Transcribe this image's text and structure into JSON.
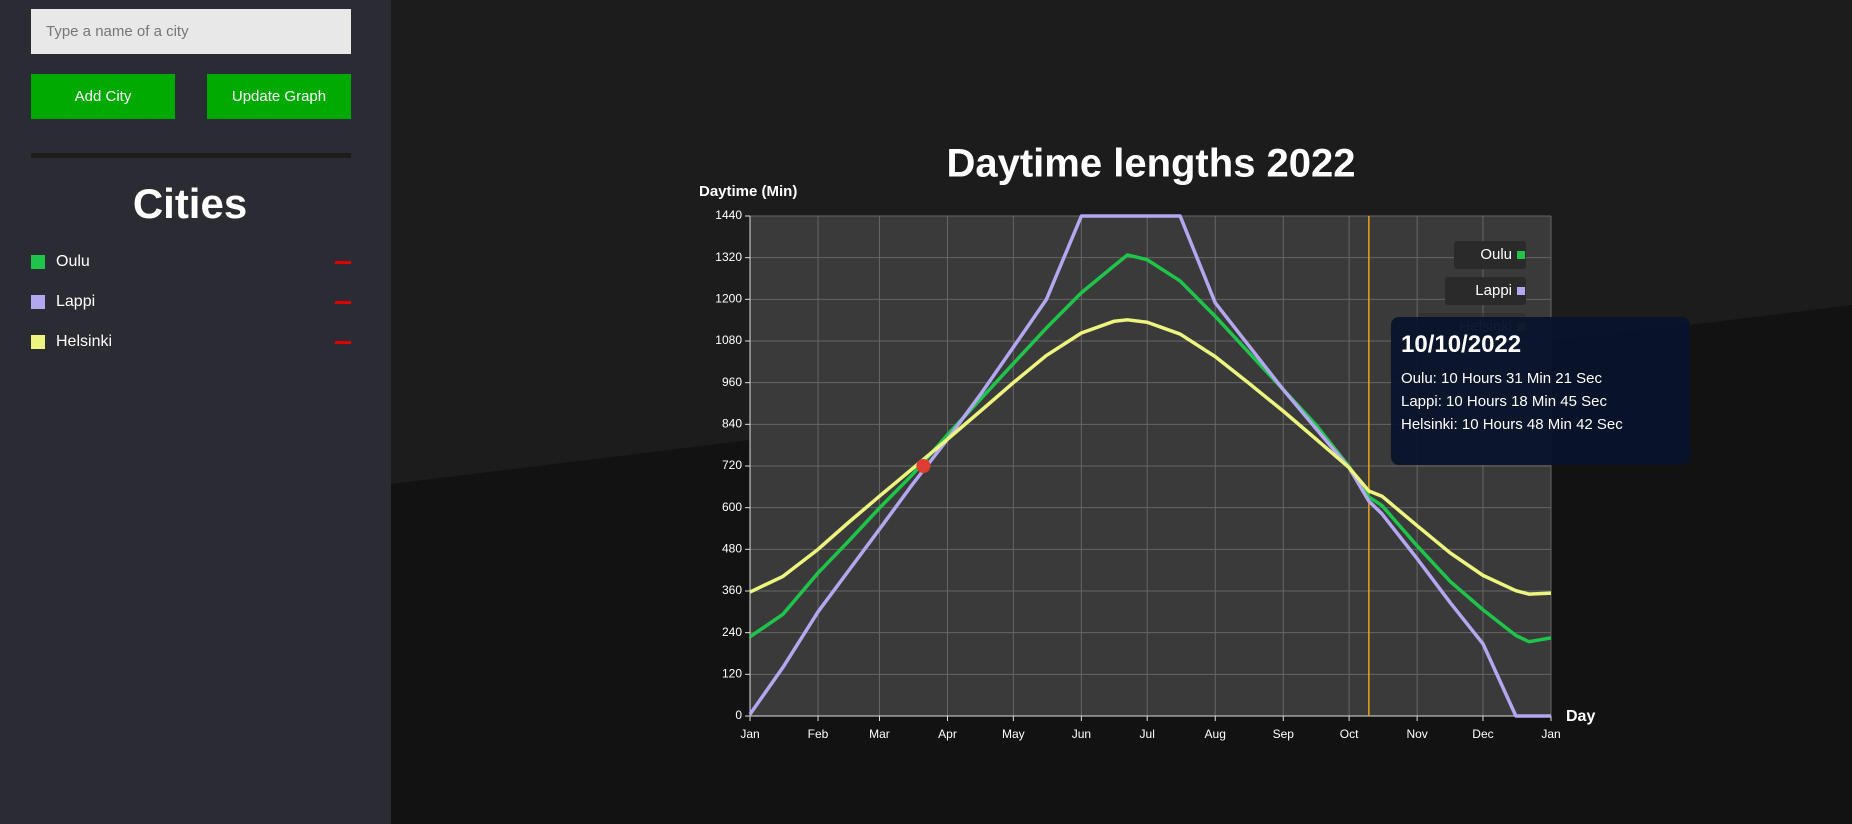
{
  "sidebar": {
    "input_placeholder": "Type a name of a city",
    "buttons": [
      "Add City",
      "Update Graph"
    ],
    "cities_heading": "Cities",
    "cities": [
      {
        "name": "Oulu",
        "color": "#1fc44a"
      },
      {
        "name": "Lappi",
        "color": "#b3a7f0"
      },
      {
        "name": "Helsinki",
        "color": "#eef57e"
      }
    ]
  },
  "chart_data": {
    "type": "line",
    "title": "Daytime lengths 2022",
    "y_label": "Daytime (Min)",
    "x_label": "Day",
    "x": [
      0,
      15,
      31,
      45,
      59,
      74,
      90,
      105,
      120,
      135,
      151,
      166,
      172,
      181,
      196,
      212,
      227,
      243,
      258,
      273,
      282,
      288,
      304,
      319,
      334,
      349,
      355,
      365
    ],
    "series": [
      {
        "name": "Oulu",
        "color": "#1fc44a",
        "values": [
          228,
          293,
          412,
          504,
          599,
          695,
          810,
          912,
          1015,
          1117,
          1219,
          1297,
          1328,
          1314,
          1253,
          1151,
          1049,
          940,
          838,
          718,
          631,
          606,
          490,
          388,
          306,
          232,
          214,
          225
        ]
      },
      {
        "name": "Lappi",
        "color": "#b3a7f0",
        "values": [
          5,
          140,
          300,
          419,
          538,
          667,
          797,
          926,
          1062,
          1199,
          1440,
          1440,
          1440,
          1440,
          1440,
          1190,
          1069,
          940,
          827,
          715,
          619,
          582,
          453,
          327,
          208,
          0,
          0,
          0
        ]
      },
      {
        "name": "Helsinki",
        "color": "#eef57e",
        "values": [
          357,
          402,
          480,
          558,
          633,
          712,
          797,
          878,
          960,
          1038,
          1103,
          1137,
          1141,
          1134,
          1100,
          1035,
          960,
          878,
          797,
          715,
          648,
          633,
          548,
          470,
          405,
          361,
          351,
          354
        ]
      }
    ],
    "xlim": [
      0,
      365
    ],
    "xticks": [
      {
        "value": 0,
        "label": "Jan"
      },
      {
        "value": 31,
        "label": "Feb"
      },
      {
        "value": 59,
        "label": "Mar"
      },
      {
        "value": 90,
        "label": "Apr"
      },
      {
        "value": 120,
        "label": "May"
      },
      {
        "value": 151,
        "label": "Jun"
      },
      {
        "value": 181,
        "label": "Jul"
      },
      {
        "value": 212,
        "label": "Aug"
      },
      {
        "value": 243,
        "label": "Sep"
      },
      {
        "value": 273,
        "label": "Oct"
      },
      {
        "value": 304,
        "label": "Nov"
      },
      {
        "value": 334,
        "label": "Dec"
      },
      {
        "value": 365,
        "label": "Jan"
      }
    ],
    "ylim": [
      0,
      1440
    ],
    "yticks": [
      0,
      120,
      240,
      360,
      480,
      600,
      720,
      840,
      960,
      1080,
      1200,
      1320,
      1440
    ],
    "grid": true,
    "legend": "top-right",
    "highlight": {
      "x": 79,
      "y": 720,
      "color": "#e03c31"
    },
    "cursor": {
      "x": 282,
      "color": "#e8a317"
    },
    "tooltip": {
      "title": "10/10/2022",
      "lines": [
        "Oulu: 10 Hours 31 Min 21 Sec",
        "Lappi: 10 Hours 18 Min 45 Sec",
        "Helsinki: 10 Hours 48 Min 42 Sec"
      ]
    }
  }
}
